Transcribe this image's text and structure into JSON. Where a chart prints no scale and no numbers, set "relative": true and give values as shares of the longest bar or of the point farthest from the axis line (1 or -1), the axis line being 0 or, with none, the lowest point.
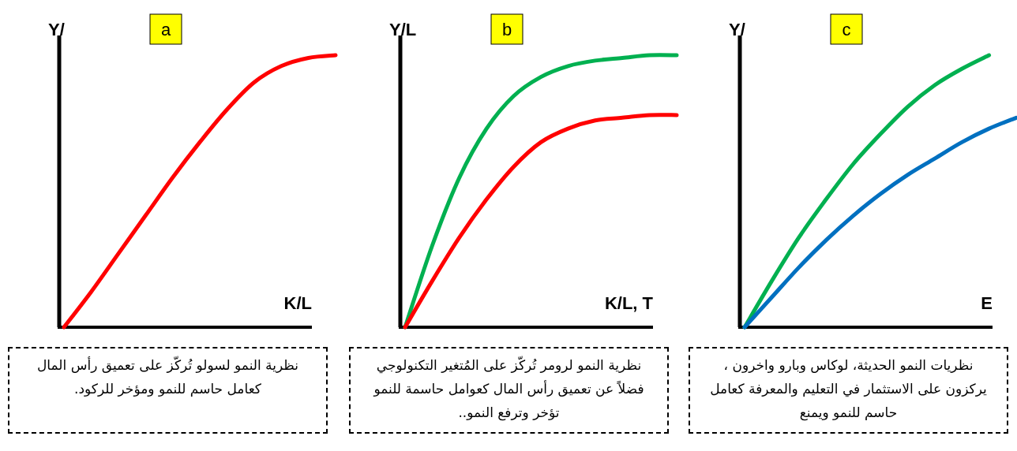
{
  "chart_data": [
    {
      "type": "line",
      "title": "a",
      "ylabel": "Y/",
      "xlabel": "K/L",
      "relative": true,
      "categories": [
        null,
        null,
        null,
        null,
        null,
        null,
        null,
        null,
        null,
        null,
        null
      ],
      "series": [
        {
          "color": "#ff0000",
          "values": [
            0,
            0.13,
            0.27,
            0.41,
            0.55,
            0.68,
            0.8,
            0.9,
            0.96,
            0.99,
            1
          ]
        }
      ],
      "annotations": [
        "نظرية النمو لسولو تُركّز على تعميق رأس المال كعامل حاسم للنمو ومؤخر للركود."
      ]
    },
    {
      "type": "line",
      "title": "b",
      "ylabel": "Y/L",
      "xlabel": "K/L, T",
      "relative": true,
      "categories": [
        null,
        null,
        null,
        null,
        null,
        null,
        null,
        null,
        null,
        null,
        null
      ],
      "series": [
        {
          "color": "#00b050",
          "values": [
            0,
            0.3,
            0.55,
            0.73,
            0.85,
            0.92,
            0.96,
            0.98,
            0.99,
            1,
            1
          ]
        },
        {
          "color": "#ff0000",
          "values": [
            0,
            0.17,
            0.33,
            0.47,
            0.59,
            0.68,
            0.73,
            0.76,
            0.77,
            0.78,
            0.78
          ]
        }
      ],
      "annotations": [
        "نظرية النمو لرومر تُركّز على المُتغير التكنولوجي فضلاً عن تعميق رأس المال كعوامل حاسمة للنمو تؤخر وترفع النمو.."
      ]
    },
    {
      "type": "line",
      "title": "c",
      "ylabel": "Y/",
      "xlabel": "E",
      "relative": true,
      "categories": [
        null,
        null,
        null,
        null,
        null,
        null,
        null,
        null,
        null,
        null,
        null
      ],
      "series": [
        {
          "color": "#00b050",
          "values": [
            0,
            0.17,
            0.33,
            0.47,
            0.6,
            0.71,
            0.81,
            0.89,
            0.95,
            1,
            null
          ]
        },
        {
          "color": "#0070c0",
          "values": [
            0,
            0.11,
            0.22,
            0.32,
            0.41,
            0.49,
            0.56,
            0.62,
            0.68,
            0.73,
            0.77
          ]
        }
      ],
      "annotations": [
        "نظريات النمو الحديثة، لوكاس وبارو واخرون ، يركزون على الاستثمار في التعليم والمعرفة كعامل حاسم للنمو ويمنع"
      ]
    }
  ]
}
